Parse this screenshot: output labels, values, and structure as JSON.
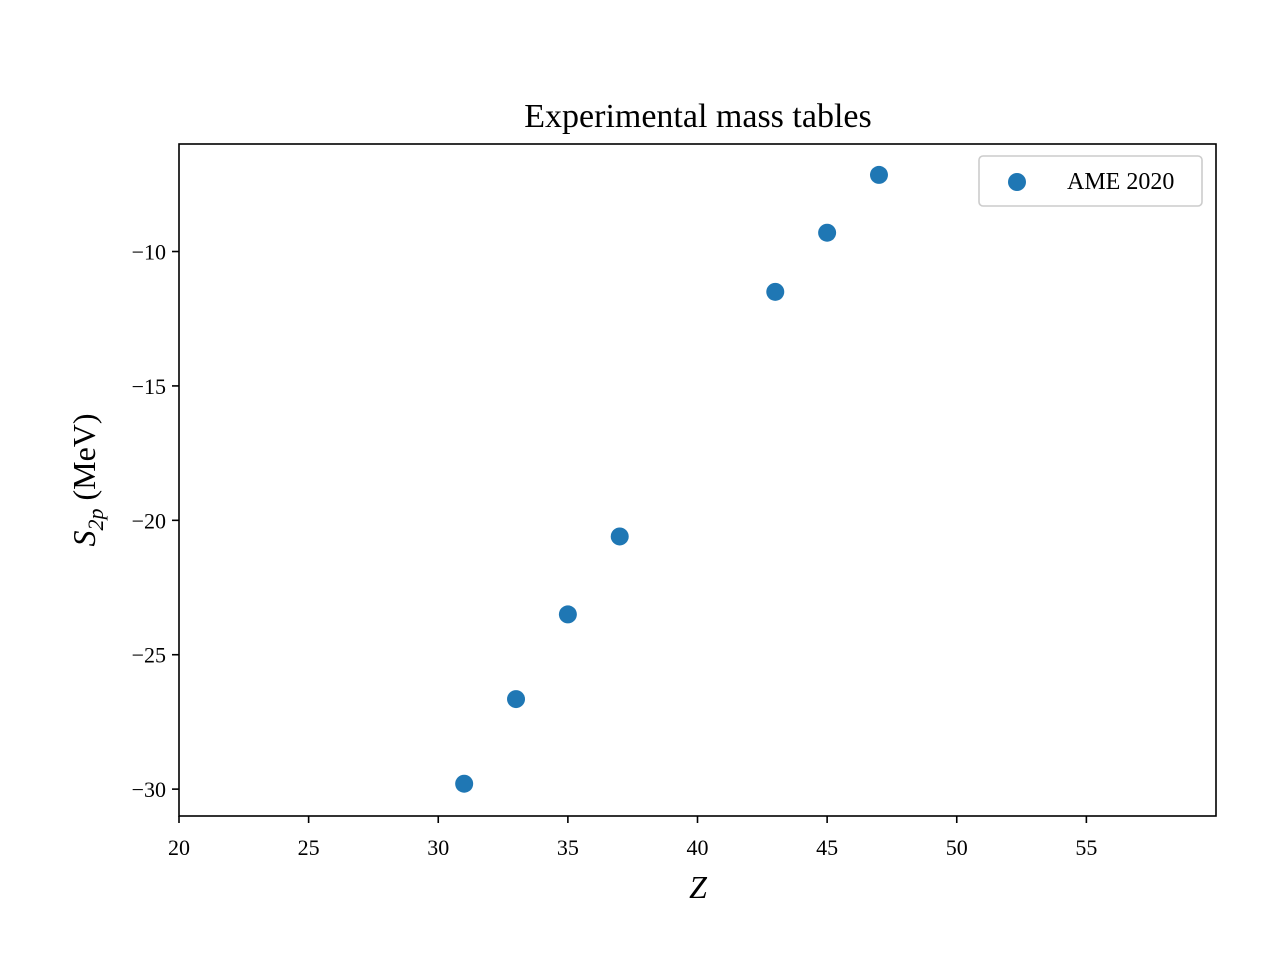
{
  "chart_data": {
    "type": "scatter",
    "title": "Experimental mass tables",
    "xlabel": "Z",
    "ylabel_main": "S",
    "ylabel_sub": "2p",
    "ylabel_unit": " (MeV)",
    "xlim": [
      20,
      60
    ],
    "ylim": [
      -31,
      -6
    ],
    "xticks": [
      20,
      25,
      30,
      35,
      40,
      45,
      50,
      55
    ],
    "xtick_labels": [
      "20",
      "25",
      "30",
      "35",
      "40",
      "45",
      "50",
      "55"
    ],
    "yticks": [
      -30,
      -25,
      -20,
      -15,
      -10
    ],
    "ytick_labels": [
      "−30",
      "−25",
      "−20",
      "−15",
      "−10"
    ],
    "grid": false,
    "legend_position": "top-right",
    "series": [
      {
        "name": "AME 2020",
        "color": "#1f77b4",
        "x": [
          31,
          33,
          35,
          37,
          43,
          45,
          47
        ],
        "y": [
          -29.8,
          -26.65,
          -23.5,
          -20.6,
          -11.5,
          -9.3,
          -7.15
        ]
      }
    ]
  }
}
